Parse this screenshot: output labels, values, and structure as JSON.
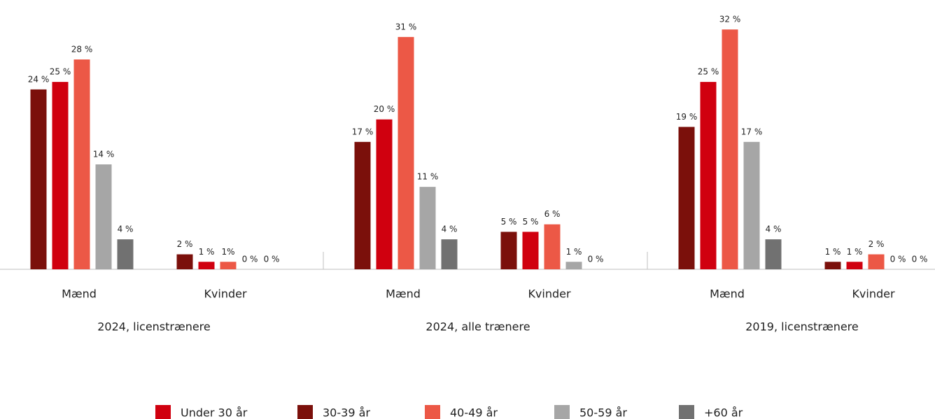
{
  "chart_data": {
    "type": "bar",
    "groups": [
      "2024, licenstrænere",
      "2024, alle trænere",
      "2019, licenstrænere"
    ],
    "categories": [
      "Mænd",
      "Kvinder",
      "Mænd",
      "Kvinder",
      "Mænd",
      "Kvinder"
    ],
    "ylim": [
      0,
      35
    ],
    "legend_order": [
      1,
      0,
      2,
      3,
      4
    ],
    "legend": "bottom",
    "series": [
      {
        "name": "30-39 år",
        "color": "#7b100b",
        "values": [
          24,
          2,
          17,
          5,
          19,
          1
        ],
        "value_labels": [
          "24 %",
          "2 %",
          "17 %",
          "5 %",
          "19 %",
          "1 %"
        ]
      },
      {
        "name": "Under 30 år",
        "color": "#d0000f",
        "values": [
          25,
          1,
          20,
          5,
          25,
          1
        ],
        "value_labels": [
          "25 %",
          "1 %",
          "20 %",
          "5 %",
          "25 %",
          "1 %"
        ]
      },
      {
        "name": "40-49 år",
        "color": "#ec5846",
        "values": [
          28,
          1,
          31,
          6,
          32,
          2
        ],
        "value_labels": [
          "28 %",
          "1%",
          "31 %",
          "6 %",
          "32 %",
          "2 %"
        ]
      },
      {
        "name": "50-59 år",
        "color": "#a6a6a6",
        "values": [
          14,
          0,
          11,
          1,
          17,
          0
        ],
        "value_labels": [
          "14 %",
          "0 %",
          "11 %",
          "1 %",
          "17 %",
          "0 %"
        ]
      },
      {
        "name": "+60 år",
        "color": "#717171",
        "values": [
          4,
          0,
          4,
          0,
          4,
          0
        ],
        "value_labels": [
          "4 %",
          "0 %",
          "4 %",
          "0 %",
          "4 %",
          "0 %"
        ]
      }
    ]
  }
}
